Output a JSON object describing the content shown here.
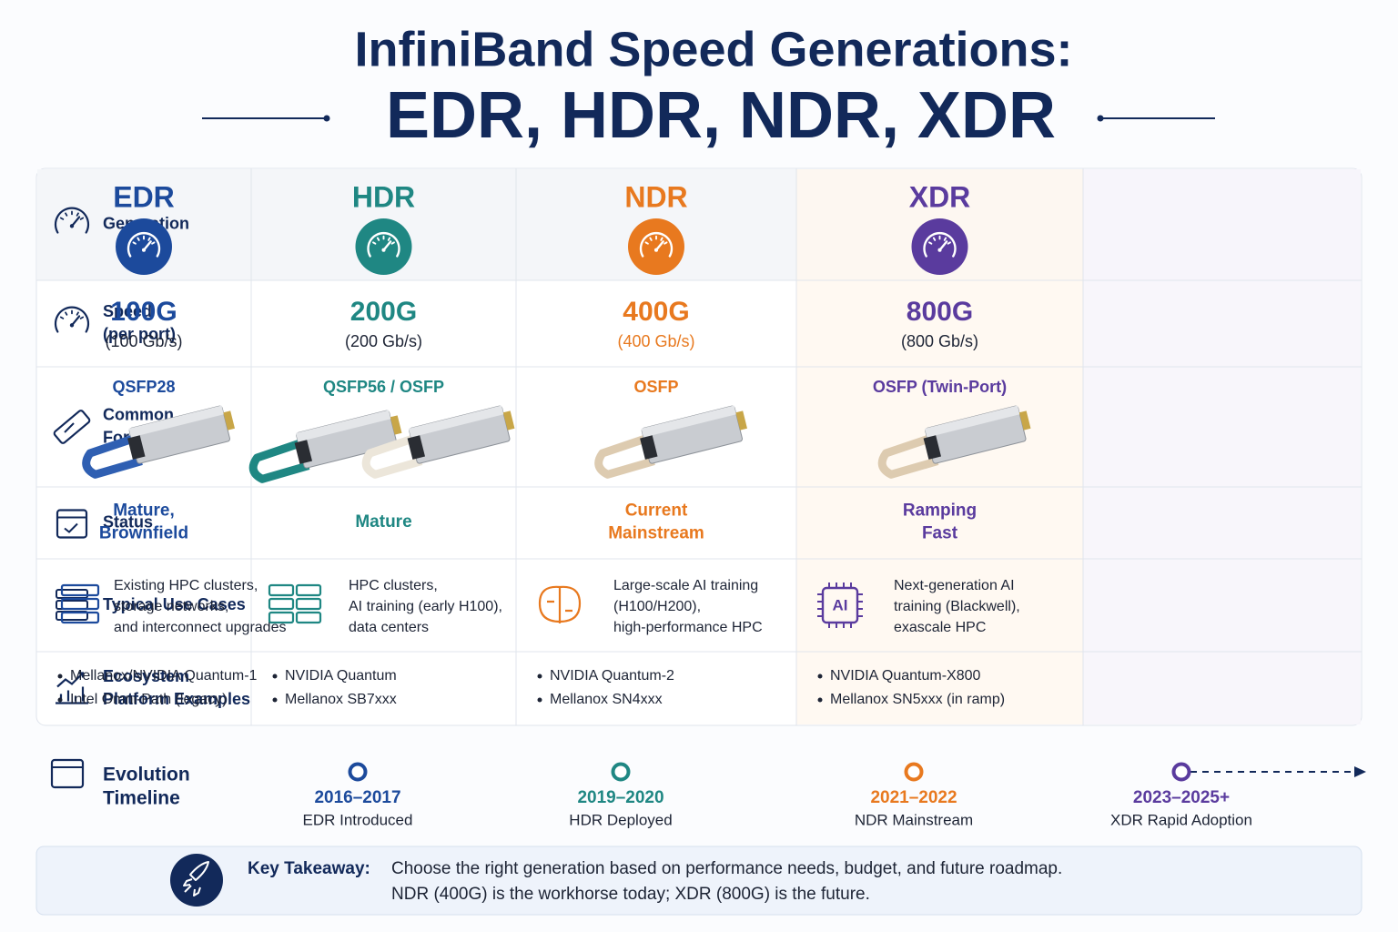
{
  "title": {
    "line1": "InfiniBand Speed Generations:",
    "line2": "EDR, HDR, NDR, XDR"
  },
  "table": {
    "row_labels": [
      [
        "Generation"
      ],
      [
        "Speed",
        "(per port)"
      ],
      [
        "Common",
        "Form Factor"
      ],
      [
        "Status"
      ],
      [
        "Typical Use Cases"
      ],
      [
        "Ecosystem",
        "Platform Examples"
      ]
    ],
    "columns": [
      {
        "name": "EDR",
        "color": "#1c4a9c",
        "speed": "100G",
        "speed_detail": "(100 Gb/s)",
        "form_factor": "QSFP28",
        "status": [
          "Mature,",
          "Brownfield"
        ],
        "use_cases": [
          "Existing HPC clusters,",
          "storage networks,",
          "and interconnect upgrades"
        ],
        "ecosystem": [
          "Mellanox/NVIDIA Quantum-1",
          "Intel Omni-Path (legacy)"
        ]
      },
      {
        "name": "HDR",
        "color": "#1f8783",
        "speed": "200G",
        "speed_detail": "(200 Gb/s)",
        "form_factor": "QSFP56 / OSFP",
        "status": [
          "Mature"
        ],
        "use_cases": [
          "HPC clusters,",
          "AI training (early H100),",
          "data centers"
        ],
        "ecosystem": [
          "NVIDIA Quantum",
          "Mellanox SB7xxx"
        ]
      },
      {
        "name": "NDR",
        "color": "#e8791f",
        "speed": "400G",
        "speed_detail": "(400 Gb/s)",
        "form_factor": "OSFP",
        "status": [
          "Current",
          "Mainstream"
        ],
        "use_cases": [
          "Large-scale AI training",
          "(H100/H200),",
          "high-performance HPC"
        ],
        "ecosystem": [
          "NVIDIA Quantum-2",
          "Mellanox SN4xxx"
        ]
      },
      {
        "name": "XDR",
        "color": "#5a3b9e",
        "speed": "800G",
        "speed_detail": "(800 Gb/s)",
        "form_factor": "OSFP (Twin-Port)",
        "status": [
          "Ramping",
          "Fast"
        ],
        "use_case_icon_text": "AI",
        "use_cases": [
          "Next-generation AI",
          "training (Blackwell),",
          "exascale HPC"
        ],
        "ecosystem": [
          "NVIDIA Quantum-X800",
          "Mellanox SN5xxx (in ramp)"
        ]
      }
    ]
  },
  "timeline": {
    "label": [
      "Evolution",
      "Timeline"
    ],
    "milestones": [
      {
        "period": "2016–2017",
        "event": "EDR Introduced"
      },
      {
        "period": "2019–2020",
        "event": "HDR Deployed"
      },
      {
        "period": "2021–2022",
        "event": "NDR Mainstream"
      },
      {
        "period": "2023–2025+",
        "event": "XDR Rapid Adoption"
      }
    ]
  },
  "takeaway": {
    "label": "Key Takeaway:",
    "lines": [
      "Choose the right generation based on performance needs, budget, and future roadmap.",
      "NDR (400G) is the workhorse today; XDR (800G) is the future."
    ]
  }
}
